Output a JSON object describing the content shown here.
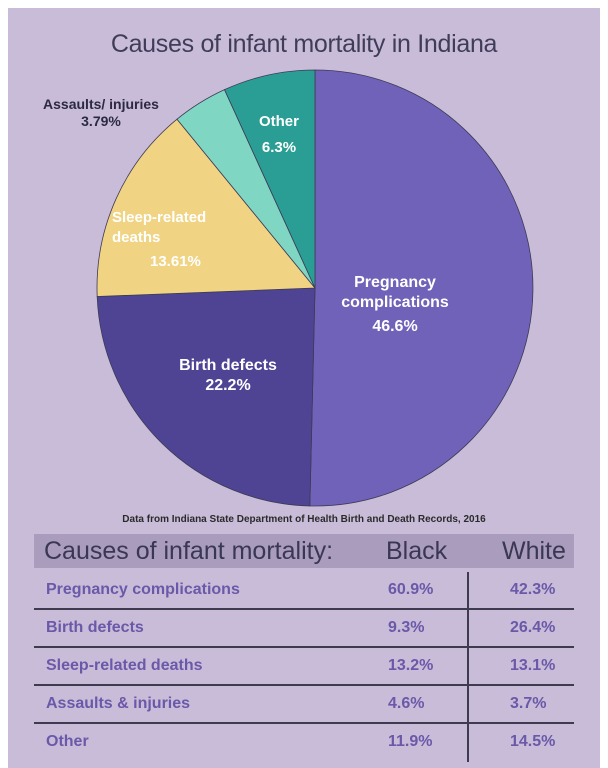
{
  "chart_data": [
    {
      "type": "pie",
      "title": "Causes of infant mortality in Indiana",
      "slices": [
        {
          "label": "Pregnancy complications",
          "value": 46.6,
          "display": "46.6%",
          "color": "#7062b8"
        },
        {
          "label": "Birth defects",
          "value": 22.2,
          "display": "22.2%",
          "color": "#4f4494"
        },
        {
          "label": "Sleep-related deaths",
          "value": 13.61,
          "display": "13.61%",
          "color": "#f0d383"
        },
        {
          "label": "Assaults/ injuries",
          "value": 3.79,
          "display": "3.79%",
          "color": "#7fd6c2"
        },
        {
          "label": "Other",
          "value": 6.3,
          "display": "6.3%",
          "color": "#2a9e95"
        }
      ],
      "source": "Data from Indiana State Department of Health Birth and Death Records, 2016"
    },
    {
      "type": "table",
      "columns": [
        "Causes of infant mortality:",
        "Black",
        "White"
      ],
      "rows": [
        {
          "cause": "Pregnancy complications",
          "black": "60.9%",
          "white": "42.3%"
        },
        {
          "cause": "Birth defects",
          "black": "9.3%",
          "white": "26.4%"
        },
        {
          "cause": "Sleep-related deaths",
          "black": "13.2%",
          "white": "13.1%"
        },
        {
          "cause": "Assaults & injuries",
          "black": "4.6%",
          "white": "3.7%"
        },
        {
          "cause": "Other",
          "black": "11.9%",
          "white": "14.5%"
        }
      ]
    }
  ],
  "labels": {
    "pregnancy": [
      "Pregnancy",
      "complications",
      "46.6%"
    ],
    "birth": [
      "Birth defects",
      "22.2%"
    ],
    "sleep": [
      "Sleep-related",
      "deaths",
      "13.61%"
    ],
    "assaults": [
      "Assaults/ injuries",
      "3.79%"
    ],
    "other": [
      "Other",
      "6.3%"
    ]
  }
}
